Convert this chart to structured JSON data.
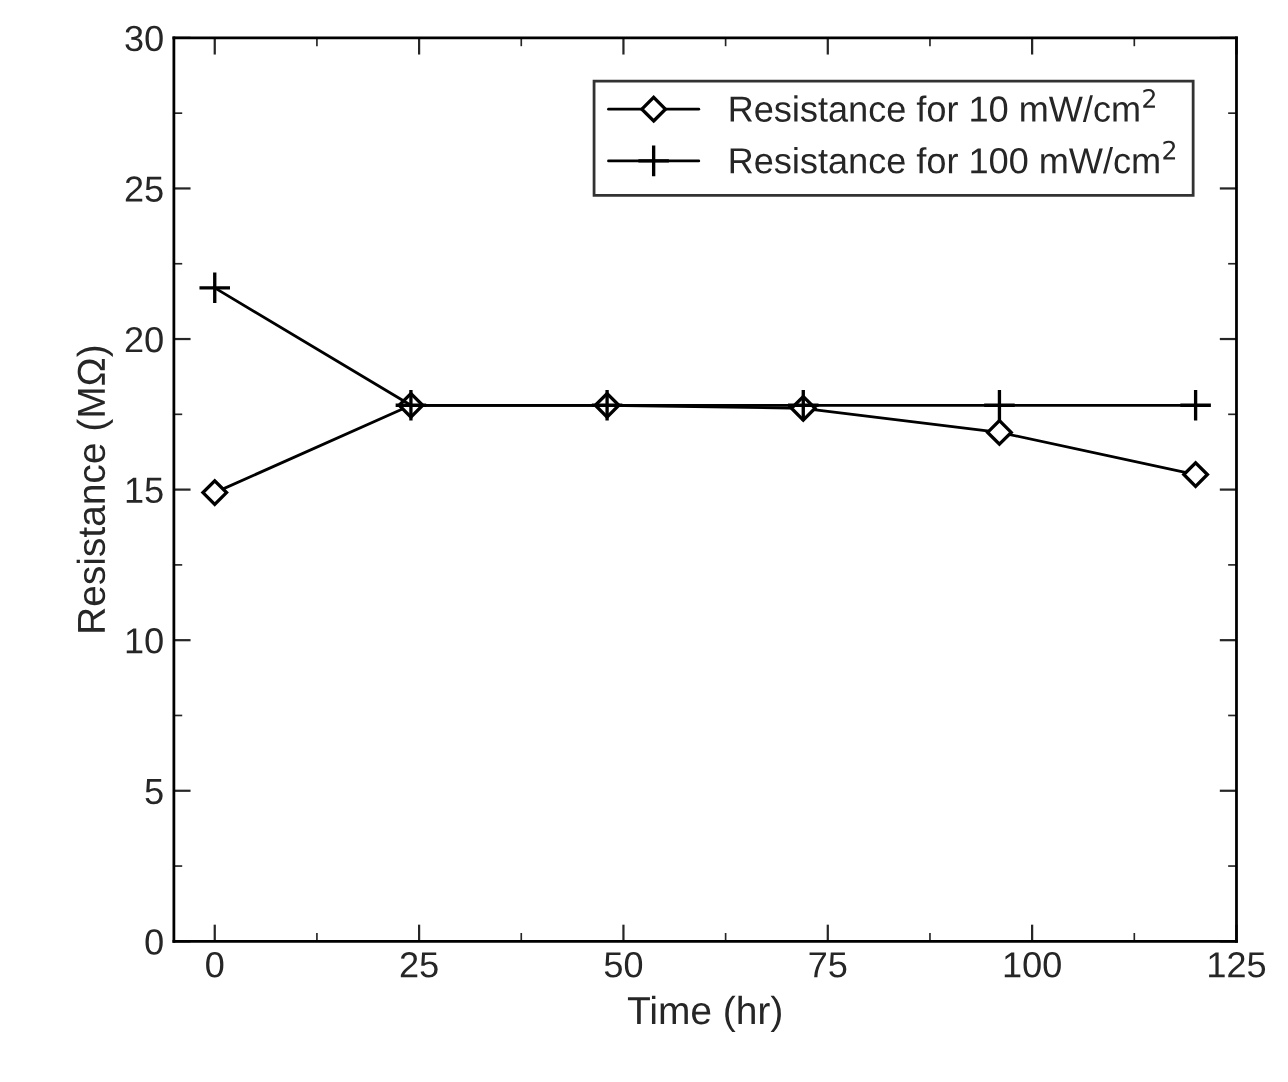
{
  "chart_data": {
    "type": "line",
    "xlabel": "Time (hr)",
    "ylabel": "Resistance (MΩ)",
    "x": [
      0,
      24,
      48,
      72,
      96,
      120
    ],
    "series": [
      {
        "name": "Resistance for 10 mW/cm$^{2}$",
        "color": "#000000",
        "marker": "diamond",
        "values": [
          14.9,
          17.8,
          17.8,
          17.7,
          16.9,
          15.5
        ]
      },
      {
        "name": "Resistance for 100 mW/cm$^{2}$",
        "color": "#000000",
        "marker": "cross",
        "values": [
          21.7,
          17.8,
          17.8,
          17.8,
          17.8,
          17.8
        ]
      }
    ],
    "xlim": [
      -5,
      125
    ],
    "xticks": [
      0,
      25,
      50,
      75,
      100,
      125
    ],
    "ylim": [
      0,
      30
    ],
    "yticks": [
      0,
      5,
      10,
      15,
      20,
      25,
      30
    ],
    "legend": "top right",
    "grid": false,
    "line_style": "solid"
  }
}
